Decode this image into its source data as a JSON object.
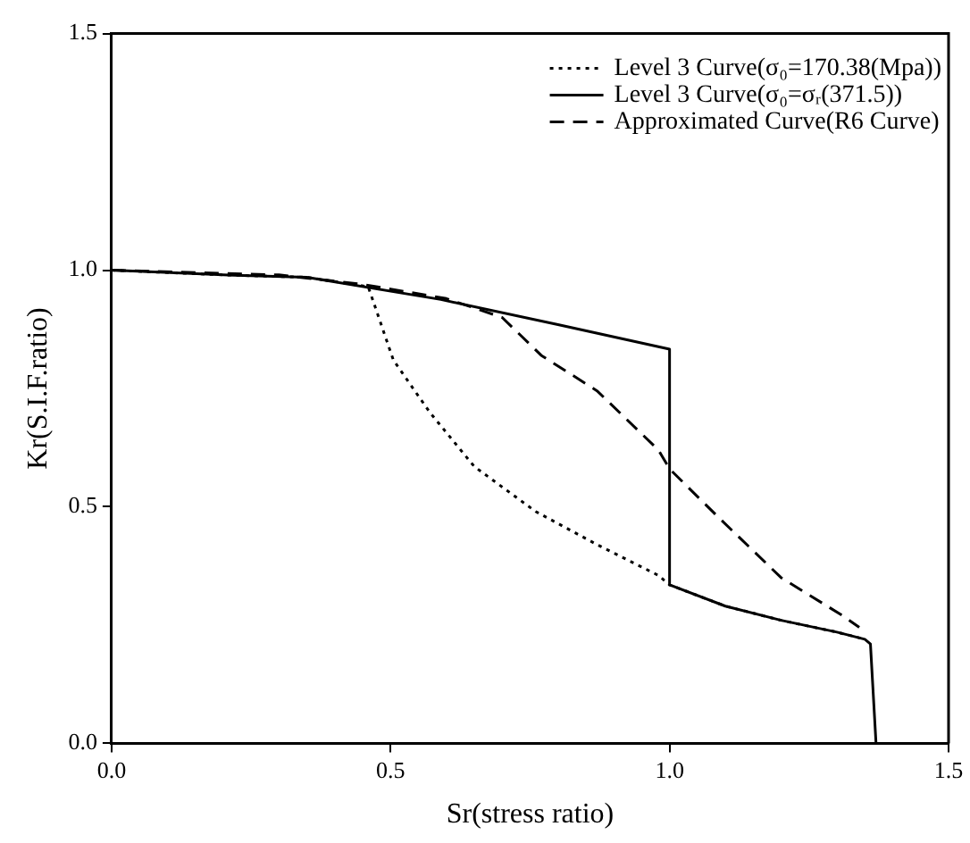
{
  "chart_data": {
    "type": "line",
    "xlabel": "Sr(stress ratio)",
    "ylabel": "Kr(S.I.F.ratio)",
    "xlim": [
      0,
      1.5
    ],
    "ylim": [
      0,
      1.5
    ],
    "xticks": [
      {
        "value": 0,
        "label": "0.0"
      },
      {
        "value": 0.5,
        "label": "0.5"
      },
      {
        "value": 1,
        "label": "1.0"
      },
      {
        "value": 1.5,
        "label": "1.5"
      }
    ],
    "yticks": [
      {
        "value": 0,
        "label": "0.0"
      },
      {
        "value": 0.5,
        "label": "0.5"
      },
      {
        "value": 1,
        "label": "1.0"
      },
      {
        "value": 1.5,
        "label": "1.5"
      }
    ],
    "grid": false,
    "legend": "top right",
    "marker": "none",
    "series": [
      {
        "name": "Level 3 Curve(σ₀=170.38(Mpa))",
        "color": "#000000",
        "line_style": "dotted",
        "x": [
          0,
          0.2,
          0.35,
          0.46,
          0.505,
          0.57,
          0.65,
          0.76,
          0.87,
          0.98,
          1.0,
          1.1,
          1.2,
          1.3,
          1.35
        ],
        "values": [
          1.0,
          0.99,
          0.985,
          0.965,
          0.81,
          0.7,
          0.585,
          0.49,
          0.42,
          0.355,
          0.335,
          0.29,
          0.26,
          0.235,
          0.22
        ]
      },
      {
        "name": "Level 3 Curve(σ₀=σᵣ(371.5))",
        "color": "#000000",
        "line_style": "solid",
        "x": [
          0,
          0.2,
          0.35,
          0.59,
          0.8,
          1.0,
          1.0,
          1.1,
          1.2,
          1.3,
          1.35,
          1.36,
          1.37
        ],
        "values": [
          1.0,
          0.99,
          0.985,
          0.938,
          0.885,
          0.833,
          0.335,
          0.29,
          0.26,
          0.235,
          0.22,
          0.21,
          0
        ]
      },
      {
        "name": "Approximated Curve(R6 Curve)",
        "color": "#000000",
        "line_style": "dashed",
        "x": [
          0,
          0.3,
          0.45,
          0.6,
          0.7,
          0.77,
          0.87,
          0.98,
          1.0,
          1.09,
          1.2,
          1.31,
          1.34
        ],
        "values": [
          1.0,
          0.99,
          0.97,
          0.94,
          0.9,
          0.82,
          0.745,
          0.62,
          0.58,
          0.475,
          0.35,
          0.27,
          0.245
        ]
      }
    ]
  }
}
